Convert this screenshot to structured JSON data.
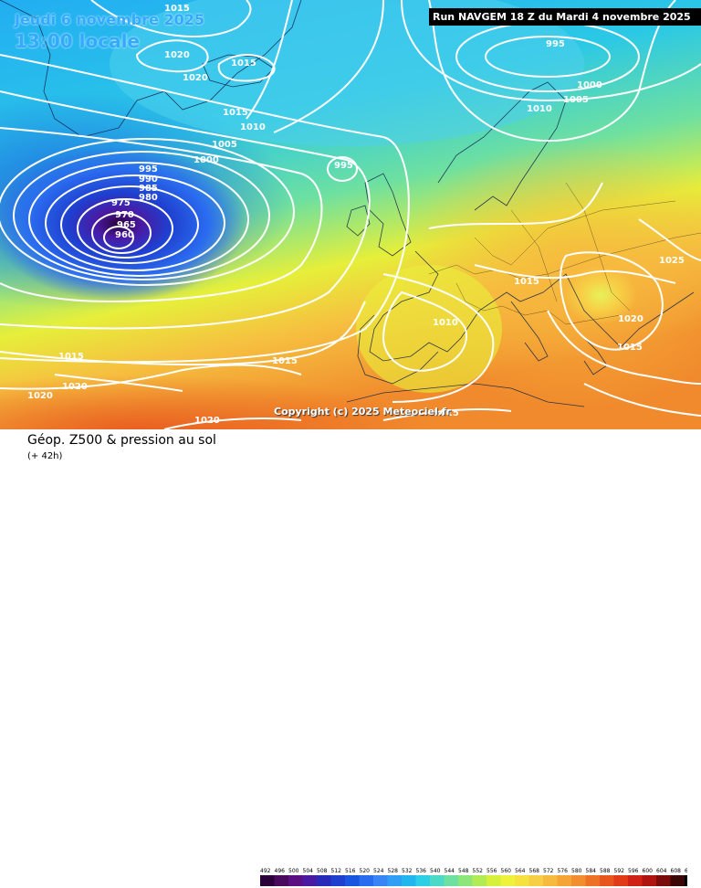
{
  "header": {
    "date_line": "Jeudi 6 novembre 2025",
    "time_line": "13:00 locale",
    "run_info": "Run NAVGEM 18 Z du Mardi 4 novembre 2025",
    "copyright": "Copyright (c) 2025 Meteociel.fr"
  },
  "footer": {
    "title": "Géop. Z500 & pression au sol",
    "subtitle": "(+ 42h)"
  },
  "legend": {
    "values": [
      "492",
      "496",
      "500",
      "504",
      "508",
      "512",
      "516",
      "520",
      "524",
      "528",
      "532",
      "536",
      "540",
      "544",
      "548",
      "552",
      "556",
      "560",
      "564",
      "568",
      "572",
      "576",
      "580",
      "584",
      "588",
      "592",
      "596",
      "600",
      "604",
      "608",
      "612"
    ],
    "colors": [
      "#2a003a",
      "#4a0a5e",
      "#5c0f82",
      "#4a1aa3",
      "#2a2ab8",
      "#1f3fcf",
      "#1a55e0",
      "#2a6cf0",
      "#3a85f5",
      "#2f9ff5",
      "#22b6ee",
      "#2ccfe6",
      "#4dd9c8",
      "#6ee0a0",
      "#8ee67a",
      "#b2ec55",
      "#d6f03c",
      "#eef23a",
      "#f5e23e",
      "#f7cf44",
      "#f6ba3e",
      "#f5a436",
      "#f28e2e",
      "#ee7226",
      "#e8561e",
      "#e03a18",
      "#cf2214",
      "#b01410",
      "#7a0c0c",
      "#3a0606",
      "#000000"
    ]
  },
  "isobar_labels": [
    "1015",
    "1020",
    "1020",
    "1015",
    "1015",
    "1010",
    "1005",
    "1000",
    "995",
    "990",
    "985",
    "980",
    "975",
    "970",
    "965",
    "960",
    "995",
    "995",
    "1000",
    "1005",
    "1010",
    "1025",
    "1015",
    "1020",
    "1015",
    "1010",
    "1015",
    "1015",
    "1020",
    "1020",
    "1020",
    "1015"
  ],
  "colors": {
    "isobar": "#ffffff",
    "header_text": "#33aaff",
    "run_box_bg": "#000000"
  }
}
